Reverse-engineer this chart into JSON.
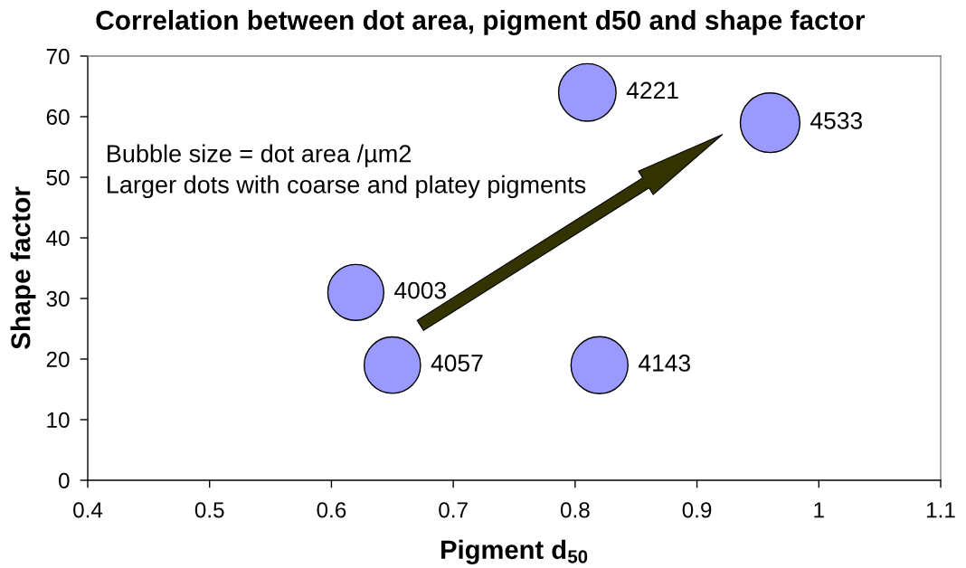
{
  "chart_data": {
    "type": "bubble",
    "title": "Correlation between dot area, pigment d50 and shape factor",
    "xlabel": "Pigment d$_{50}$",
    "ylabel": "Shape factor",
    "annotations": [
      "Bubble size = dot area /µm2",
      "Larger dots with coarse and platey pigments"
    ],
    "x": [
      0.62,
      0.65,
      0.82,
      0.81,
      0.96
    ],
    "series": [
      {
        "color": "#9999ff",
        "values": [
          31,
          19,
          19,
          64,
          59
        ],
        "sizes": [
          4003,
          4057,
          4143,
          4221,
          4533
        ],
        "value_labels": [
          "4003",
          "4057",
          "4143",
          "4221",
          "4533"
        ]
      }
    ],
    "xlim": [
      0.4,
      1.1
    ],
    "xticks": [
      0.4,
      0.5,
      0.6,
      0.7,
      0.8,
      0.9,
      1,
      1.1
    ],
    "ylim": [
      0,
      70
    ],
    "yticks": [
      0,
      10,
      20,
      30,
      40,
      50,
      60,
      70
    ],
    "marker": "circle"
  }
}
